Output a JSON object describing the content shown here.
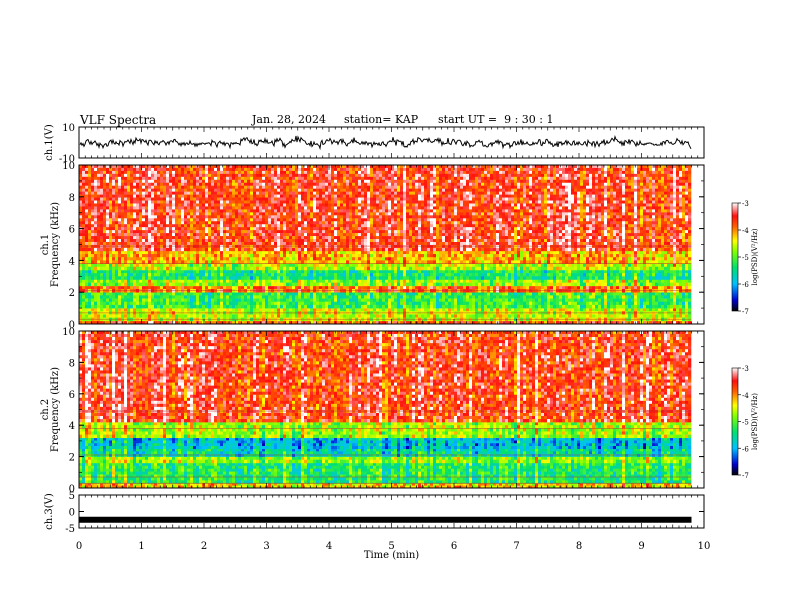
{
  "header": {
    "title": "VLF Spectra",
    "date": "Jan. 28, 2024",
    "station": "station= KAP",
    "start": "start UT =  9 : 30 : 1"
  },
  "chart_data": [
    {
      "type": "line",
      "panel": "ch1-waveform",
      "ylabel": "ch.1(V)",
      "ylim": [
        -10,
        10
      ],
      "yticks": [
        10,
        -10
      ],
      "xlim": [
        0,
        10
      ],
      "series": [
        {
          "values_summary": "noisy trace around 0 V spanning 0 to 9.8 min"
        }
      ]
    },
    {
      "type": "heatmap",
      "panel": "ch1-spectrogram",
      "ylabel": "ch.1\nFrequency (kHz)",
      "ylim": [
        0,
        10
      ],
      "yticks": [
        0,
        2,
        4,
        6,
        8,
        10
      ],
      "xlim": [
        0,
        10
      ],
      "data_end_min": 9.8,
      "colorbar": {
        "label": "log(PSD)(V²/Hz)",
        "range": [
          -7,
          -3
        ],
        "ticks": [
          "-3",
          "-4",
          "-5",
          "-6",
          "-7"
        ]
      },
      "bands": [
        {
          "f": [
            0,
            0.2
          ],
          "level": -3.8
        },
        {
          "f": [
            0.2,
            1.0
          ],
          "level": -4.6
        },
        {
          "f": [
            1.0,
            2.0
          ],
          "level": -5.2
        },
        {
          "f": [
            2.0,
            2.4
          ],
          "level": -3.9
        },
        {
          "f": [
            2.4,
            2.8
          ],
          "level": -4.8
        },
        {
          "f": [
            2.8,
            3.4
          ],
          "level": -5.4
        },
        {
          "f": [
            3.4,
            3.8
          ],
          "level": -4.7
        },
        {
          "f": [
            3.8,
            4.6
          ],
          "level": -4.2
        },
        {
          "f": [
            4.6,
            10
          ],
          "level": -3.6
        }
      ]
    },
    {
      "type": "heatmap",
      "panel": "ch2-spectrogram",
      "ylabel": "ch.2\nFrequency (kHz)",
      "ylim": [
        0,
        10
      ],
      "yticks": [
        0,
        2,
        4,
        6,
        8,
        10
      ],
      "xlim": [
        0,
        10
      ],
      "data_end_min": 9.8,
      "colorbar": {
        "label": "log(PSD)(V²/Hz)",
        "range": [
          -7,
          -3
        ],
        "ticks": [
          "-3",
          "-4",
          "-5",
          "-6",
          "-7"
        ]
      },
      "bands": [
        {
          "f": [
            0,
            0.3
          ],
          "level": -4.3
        },
        {
          "f": [
            0.3,
            1.6
          ],
          "level": -5.3
        },
        {
          "f": [
            1.6,
            2.0
          ],
          "level": -4.8
        },
        {
          "f": [
            2.0,
            2.5
          ],
          "level": -5.6
        },
        {
          "f": [
            2.5,
            3.2
          ],
          "level": -5.9
        },
        {
          "f": [
            3.2,
            4.2
          ],
          "level": -4.7
        },
        {
          "f": [
            4.2,
            10
          ],
          "level": -3.6
        }
      ]
    },
    {
      "type": "line",
      "panel": "ch3-waveform",
      "ylabel": "ch.3(V)",
      "ylim": [
        -5,
        5
      ],
      "yticks": [
        5,
        0,
        -5
      ],
      "xlim": [
        0,
        10
      ],
      "xticks": [
        0,
        1,
        2,
        3,
        4,
        5,
        6,
        7,
        8,
        9,
        10
      ],
      "xlabel": "Time (min)",
      "series": [
        {
          "values_summary": "flat thick trace at about -2.5 V from 0 to 9.8 min"
        }
      ]
    }
  ]
}
